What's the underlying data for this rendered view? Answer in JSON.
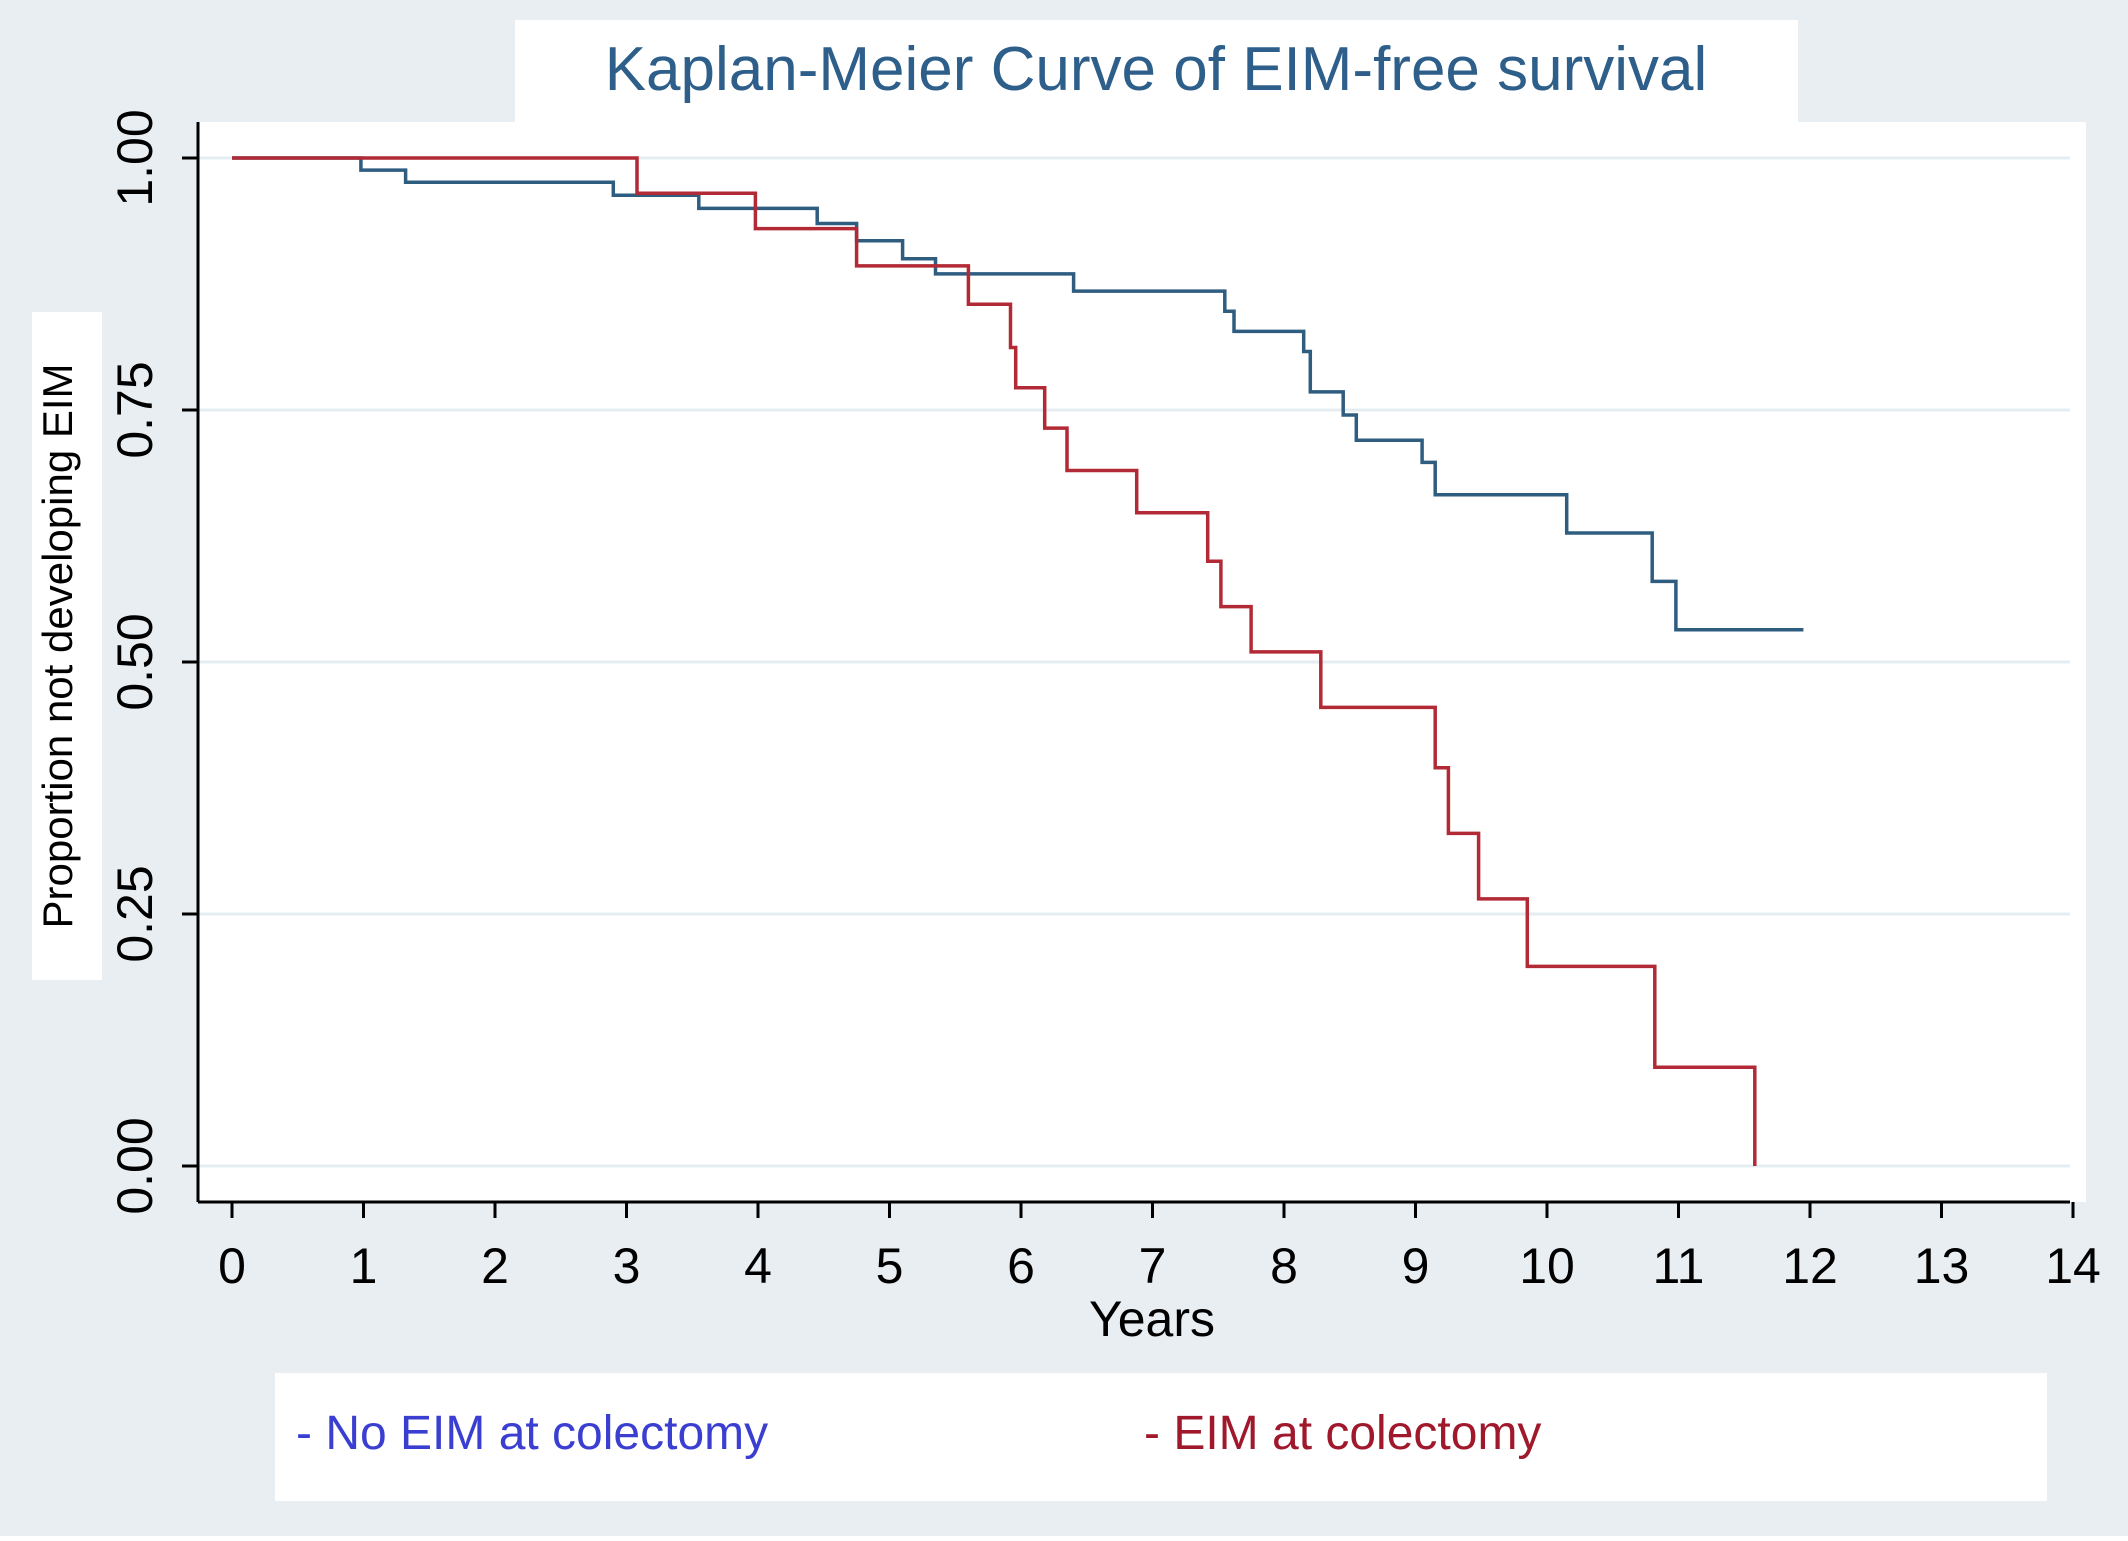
{
  "colors": {
    "background": "#ffffff",
    "outer_panel": "#e8eef2",
    "title": "#2e5f8a",
    "no_eim": "#2f5d80",
    "eim": "#b22a35",
    "legend_no_eim_text": "#3b3fd1",
    "legend_eim_text": "#a0182c",
    "grid": "#e4edf1",
    "axis": "#000000"
  },
  "chart_data": {
    "type": "line",
    "step": true,
    "title": "Kaplan-Meier Curve of EIM-free survival",
    "xlabel": "Years",
    "ylabel": "Proportion not developing EIM",
    "xlim": [
      0,
      14
    ],
    "ylim": [
      0,
      1
    ],
    "x_ticks": [
      0,
      1,
      2,
      3,
      4,
      5,
      6,
      7,
      8,
      9,
      10,
      11,
      12,
      13,
      14
    ],
    "x_tick_labels": [
      "0",
      "1",
      "2",
      "3",
      "4",
      "5",
      "6",
      "7",
      "8",
      "9",
      "10",
      "11",
      "12",
      "13",
      "14"
    ],
    "y_ticks": [
      0,
      0.25,
      0.5,
      0.75,
      1
    ],
    "y_tick_labels": [
      "0.00",
      "0.25",
      "0.50",
      "0.75",
      "1.00"
    ],
    "grid": true,
    "legend_position": "bottom",
    "legend": [
      "- No EIM at colectomy",
      "- EIM at colectomy"
    ],
    "series": [
      {
        "key": "no_eim",
        "name": "No EIM at colectomy",
        "points": [
          [
            0,
            1.0
          ],
          [
            0.98,
            0.988
          ],
          [
            1.32,
            0.976
          ],
          [
            2.9,
            0.963
          ],
          [
            3.55,
            0.95
          ],
          [
            4.45,
            0.935
          ],
          [
            4.75,
            0.918
          ],
          [
            5.1,
            0.9
          ],
          [
            5.35,
            0.885
          ],
          [
            6.4,
            0.868
          ],
          [
            7.55,
            0.848
          ],
          [
            7.62,
            0.828
          ],
          [
            8.15,
            0.808
          ],
          [
            8.2,
            0.768
          ],
          [
            8.45,
            0.745
          ],
          [
            8.55,
            0.72
          ],
          [
            9.05,
            0.698
          ],
          [
            9.15,
            0.666
          ],
          [
            10.15,
            0.628
          ],
          [
            10.8,
            0.58
          ],
          [
            10.98,
            0.532
          ],
          [
            11.95,
            0.532
          ]
        ]
      },
      {
        "key": "eim",
        "name": "EIM at colectomy",
        "points": [
          [
            0,
            1.0
          ],
          [
            3.08,
            0.965
          ],
          [
            3.98,
            0.93
          ],
          [
            4.75,
            0.893
          ],
          [
            5.6,
            0.855
          ],
          [
            5.92,
            0.812
          ],
          [
            5.96,
            0.772
          ],
          [
            6.18,
            0.732
          ],
          [
            6.35,
            0.69
          ],
          [
            6.88,
            0.648
          ],
          [
            7.42,
            0.6
          ],
          [
            7.52,
            0.555
          ],
          [
            7.75,
            0.51
          ],
          [
            8.28,
            0.455
          ],
          [
            9.15,
            0.395
          ],
          [
            9.25,
            0.33
          ],
          [
            9.48,
            0.265
          ],
          [
            9.85,
            0.198
          ],
          [
            10.82,
            0.098
          ],
          [
            11.58,
            0.0
          ]
        ]
      }
    ]
  }
}
